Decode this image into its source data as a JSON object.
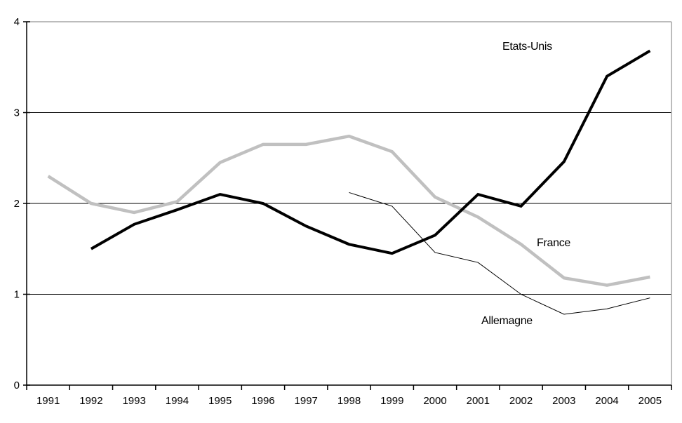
{
  "chart_data": {
    "type": "line",
    "title": "",
    "xlabel": "",
    "ylabel": "",
    "ylim": [
      0,
      4
    ],
    "y_ticks": [
      "0",
      "1",
      "2",
      "3",
      "4"
    ],
    "x_categories": [
      "1991",
      "1992",
      "1993",
      "1994",
      "1995",
      "1996",
      "1997",
      "1998",
      "1999",
      "2000",
      "2001",
      "2002",
      "2003",
      "2004",
      "2005"
    ],
    "grid": "horizontal gridlines at 1, 2, 3; plot border top and right",
    "legend_position": "inline-annotations",
    "series": [
      {
        "name": "France",
        "color": "#c0c0c0",
        "stroke_width": 4.5,
        "values": [
          2.3,
          2.0,
          1.9,
          2.02,
          2.45,
          2.65,
          2.65,
          2.74,
          2.57,
          2.07,
          1.85,
          1.55,
          1.18,
          1.1,
          1.19
        ]
      },
      {
        "name": "Allemagne",
        "color": "#000000",
        "stroke_width": 1,
        "values": [
          null,
          null,
          null,
          null,
          null,
          null,
          null,
          2.12,
          1.97,
          1.46,
          1.35,
          1.0,
          0.78,
          0.84,
          0.96
        ]
      },
      {
        "name": "Etats-Unis",
        "color": "#000000",
        "stroke_width": 4,
        "values": [
          null,
          1.5,
          1.77,
          1.93,
          2.1,
          2.0,
          1.75,
          1.55,
          1.45,
          1.65,
          2.1,
          1.97,
          2.46,
          3.4,
          3.68
        ]
      }
    ],
    "annotations": {
      "etats_unis": {
        "text": "Etats-Unis"
      },
      "france": {
        "text": "France"
      },
      "allemagne": {
        "text": "Allemagne"
      }
    },
    "colors": {
      "background": "#ffffff",
      "gridline": "#000000",
      "axis": "#000000",
      "plot_border": "#a6a6a6",
      "tick_label": "#000000"
    }
  }
}
